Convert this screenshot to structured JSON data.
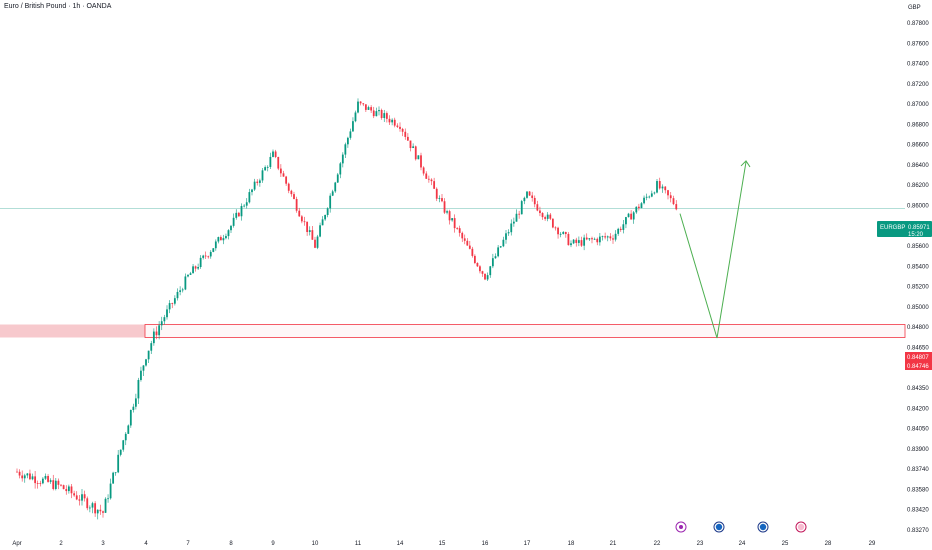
{
  "header": {
    "title": "Euro / British Pound · 1h · OANDA",
    "currency": "GBP"
  },
  "price_tag": {
    "symbol": "EURGBP",
    "price": "0.85971",
    "countdown": "15:20",
    "color": "#089981"
  },
  "zone_tags": {
    "top": "0.84807",
    "bottom": "0.84746",
    "color": "#f23645"
  },
  "event_icons": [
    "lightning-icon",
    "flag-icon-eu",
    "flag-icon-uk",
    "calendar-icon"
  ],
  "colors": {
    "up": "#089981",
    "down": "#f23645",
    "zone_fill": "#f7c9cd",
    "projection": "#4caf50",
    "current_line": "#089981"
  },
  "chart_data": {
    "type": "candlestick",
    "title": "Euro / British Pound · 1h · OANDA",
    "y_axis": {
      "labels": [
        "0.87800",
        "0.87600",
        "0.87400",
        "0.87200",
        "0.87000",
        "0.86800",
        "0.86600",
        "0.86400",
        "0.86200",
        "0.86000",
        "0.85800",
        "0.85600",
        "0.85400",
        "0.85200",
        "0.85000",
        "0.84800",
        "0.84650",
        "0.84500",
        "0.84350",
        "0.84200",
        "0.84050",
        "0.83900",
        "0.83740",
        "0.83580",
        "0.83420",
        "0.83270"
      ],
      "range": [
        0.8325,
        0.879
      ]
    },
    "x_axis": {
      "labels": [
        "Apr",
        "2",
        "3",
        "4",
        "7",
        "8",
        "9",
        "10",
        "11",
        "14",
        "15",
        "16",
        "17",
        "18",
        "21",
        "22",
        "23",
        "24",
        "25",
        "28",
        "29"
      ]
    },
    "current_price": 0.85971,
    "support_zone": [
      0.84746,
      0.84807
    ],
    "projection": [
      {
        "date": "22",
        "price": 0.8592
      },
      {
        "date": "23",
        "price": 0.8472
      },
      {
        "date": "24",
        "price": 0.8643
      }
    ],
    "close_path": [
      {
        "date": "Apr",
        "price": 0.8372
      },
      {
        "date": "2",
        "price": 0.836
      },
      {
        "date": "3",
        "price": 0.834
      },
      {
        "date": "4",
        "price": 0.846
      },
      {
        "date": "7",
        "price": 0.853
      },
      {
        "date": "8",
        "price": 0.858
      },
      {
        "date": "9",
        "price": 0.865
      },
      {
        "date": "10",
        "price": 0.856
      },
      {
        "date": "11",
        "price": 0.87
      },
      {
        "date": "14",
        "price": 0.868
      },
      {
        "date": "15",
        "price": 0.86
      },
      {
        "date": "16",
        "price": 0.853
      },
      {
        "date": "17",
        "price": 0.861
      },
      {
        "date": "18",
        "price": 0.8562
      },
      {
        "date": "21",
        "price": 0.857
      },
      {
        "date": "22",
        "price": 0.862
      },
      {
        "date": "22",
        "price": 0.8597
      }
    ]
  }
}
